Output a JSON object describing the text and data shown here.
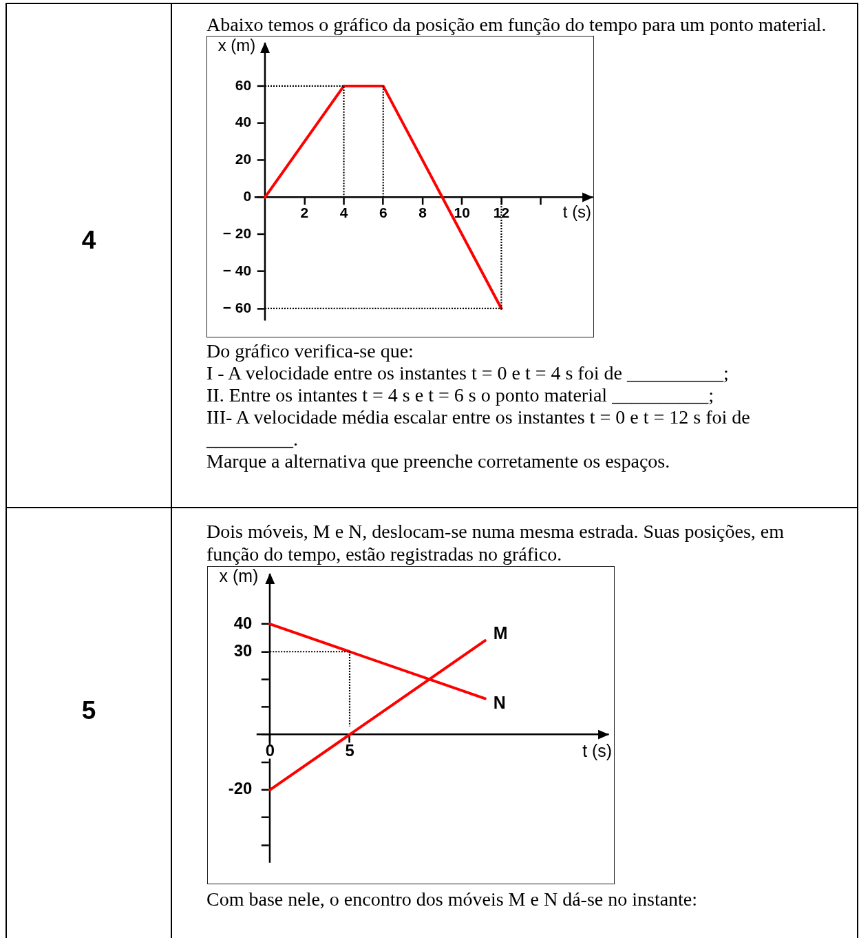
{
  "chart_data": [
    {
      "type": "line",
      "title": "4",
      "subtitle": "Abaixo temos o gráfico da posição em função do tempo para um ponto material.",
      "xlabel": "t (s)",
      "ylabel": "x (m)",
      "annotations": [
        "Do gráfico verifica-se que:",
        "I - A velocidade entre os instantes t = 0 e t = 4 s foi de __________;",
        "II. Entre os intantes t = 4 s e t = 6 s o ponto material __________;",
        "III- A velocidade média escalar entre os instantes t = 0 e t = 12 s foi de",
        "_________.",
        "Marque a alternativa que preenche corretamente os espaços."
      ],
      "series": [
        {
          "color": "#ff0000",
          "x": [
            0,
            4,
            6,
            12
          ],
          "values": [
            0,
            60,
            60,
            -60
          ]
        },
        {
          "color": "#000000",
          "line_style": "dotted",
          "x": [
            0,
            4,
            4
          ],
          "values": [
            60,
            60,
            0
          ]
        },
        {
          "color": "#000000",
          "line_style": "dotted",
          "x": [
            6,
            6
          ],
          "values": [
            60,
            0
          ]
        },
        {
          "color": "#000000",
          "line_style": "dotted",
          "x": [
            0,
            12,
            12
          ],
          "values": [
            -60,
            -60,
            0
          ]
        }
      ],
      "xlim": [
        -0.5,
        16.6
      ],
      "ylim": [
        -66,
        83
      ],
      "xticks": [
        2,
        4,
        6,
        8,
        10,
        12,
        {
          "value": 14,
          "label": null
        }
      ],
      "yticks": [
        {
          "value": -60,
          "label": "− 60"
        },
        {
          "value": -40,
          "label": "− 40"
        },
        {
          "value": -20,
          "label": "− 20"
        },
        0,
        20,
        40,
        60
      ],
      "marker": "none"
    },
    {
      "type": "line",
      "title": "5",
      "subtitle": "Dois móveis, M e N, deslocam-se numa mesma estrada. Suas posições, em função do tempo, estão registradas no gráfico.",
      "xlabel": "t (s)",
      "ylabel": "x (m)",
      "annotations": [
        "Com base nele, o encontro dos móveis M e N dá-se no instante:"
      ],
      "series": [
        {
          "name": "N",
          "color": "#ff0000",
          "x": [
            0,
            13.5
          ],
          "values": [
            40,
            13
          ]
        },
        {
          "name": "M",
          "color": "#ff0000",
          "x": [
            0,
            13.5
          ],
          "values": [
            -20,
            34
          ]
        },
        {
          "color": "#000000",
          "line_style": "dotted",
          "x": [
            0,
            5,
            5
          ],
          "values": [
            30,
            30,
            3
          ]
        }
      ],
      "xlim": [
        -0.8,
        21.2
      ],
      "ylim": [
        -46,
        58
      ],
      "xticks": [
        0,
        5
      ],
      "yticks": [
        {
          "value": -40,
          "label": null
        },
        {
          "value": -30,
          "label": null
        },
        -20,
        {
          "value": -10,
          "label": null
        },
        {
          "value": 0,
          "label": null
        },
        {
          "value": 10,
          "label": null
        },
        {
          "value": 20,
          "label": null
        },
        30,
        40
      ],
      "marker": "none"
    }
  ]
}
